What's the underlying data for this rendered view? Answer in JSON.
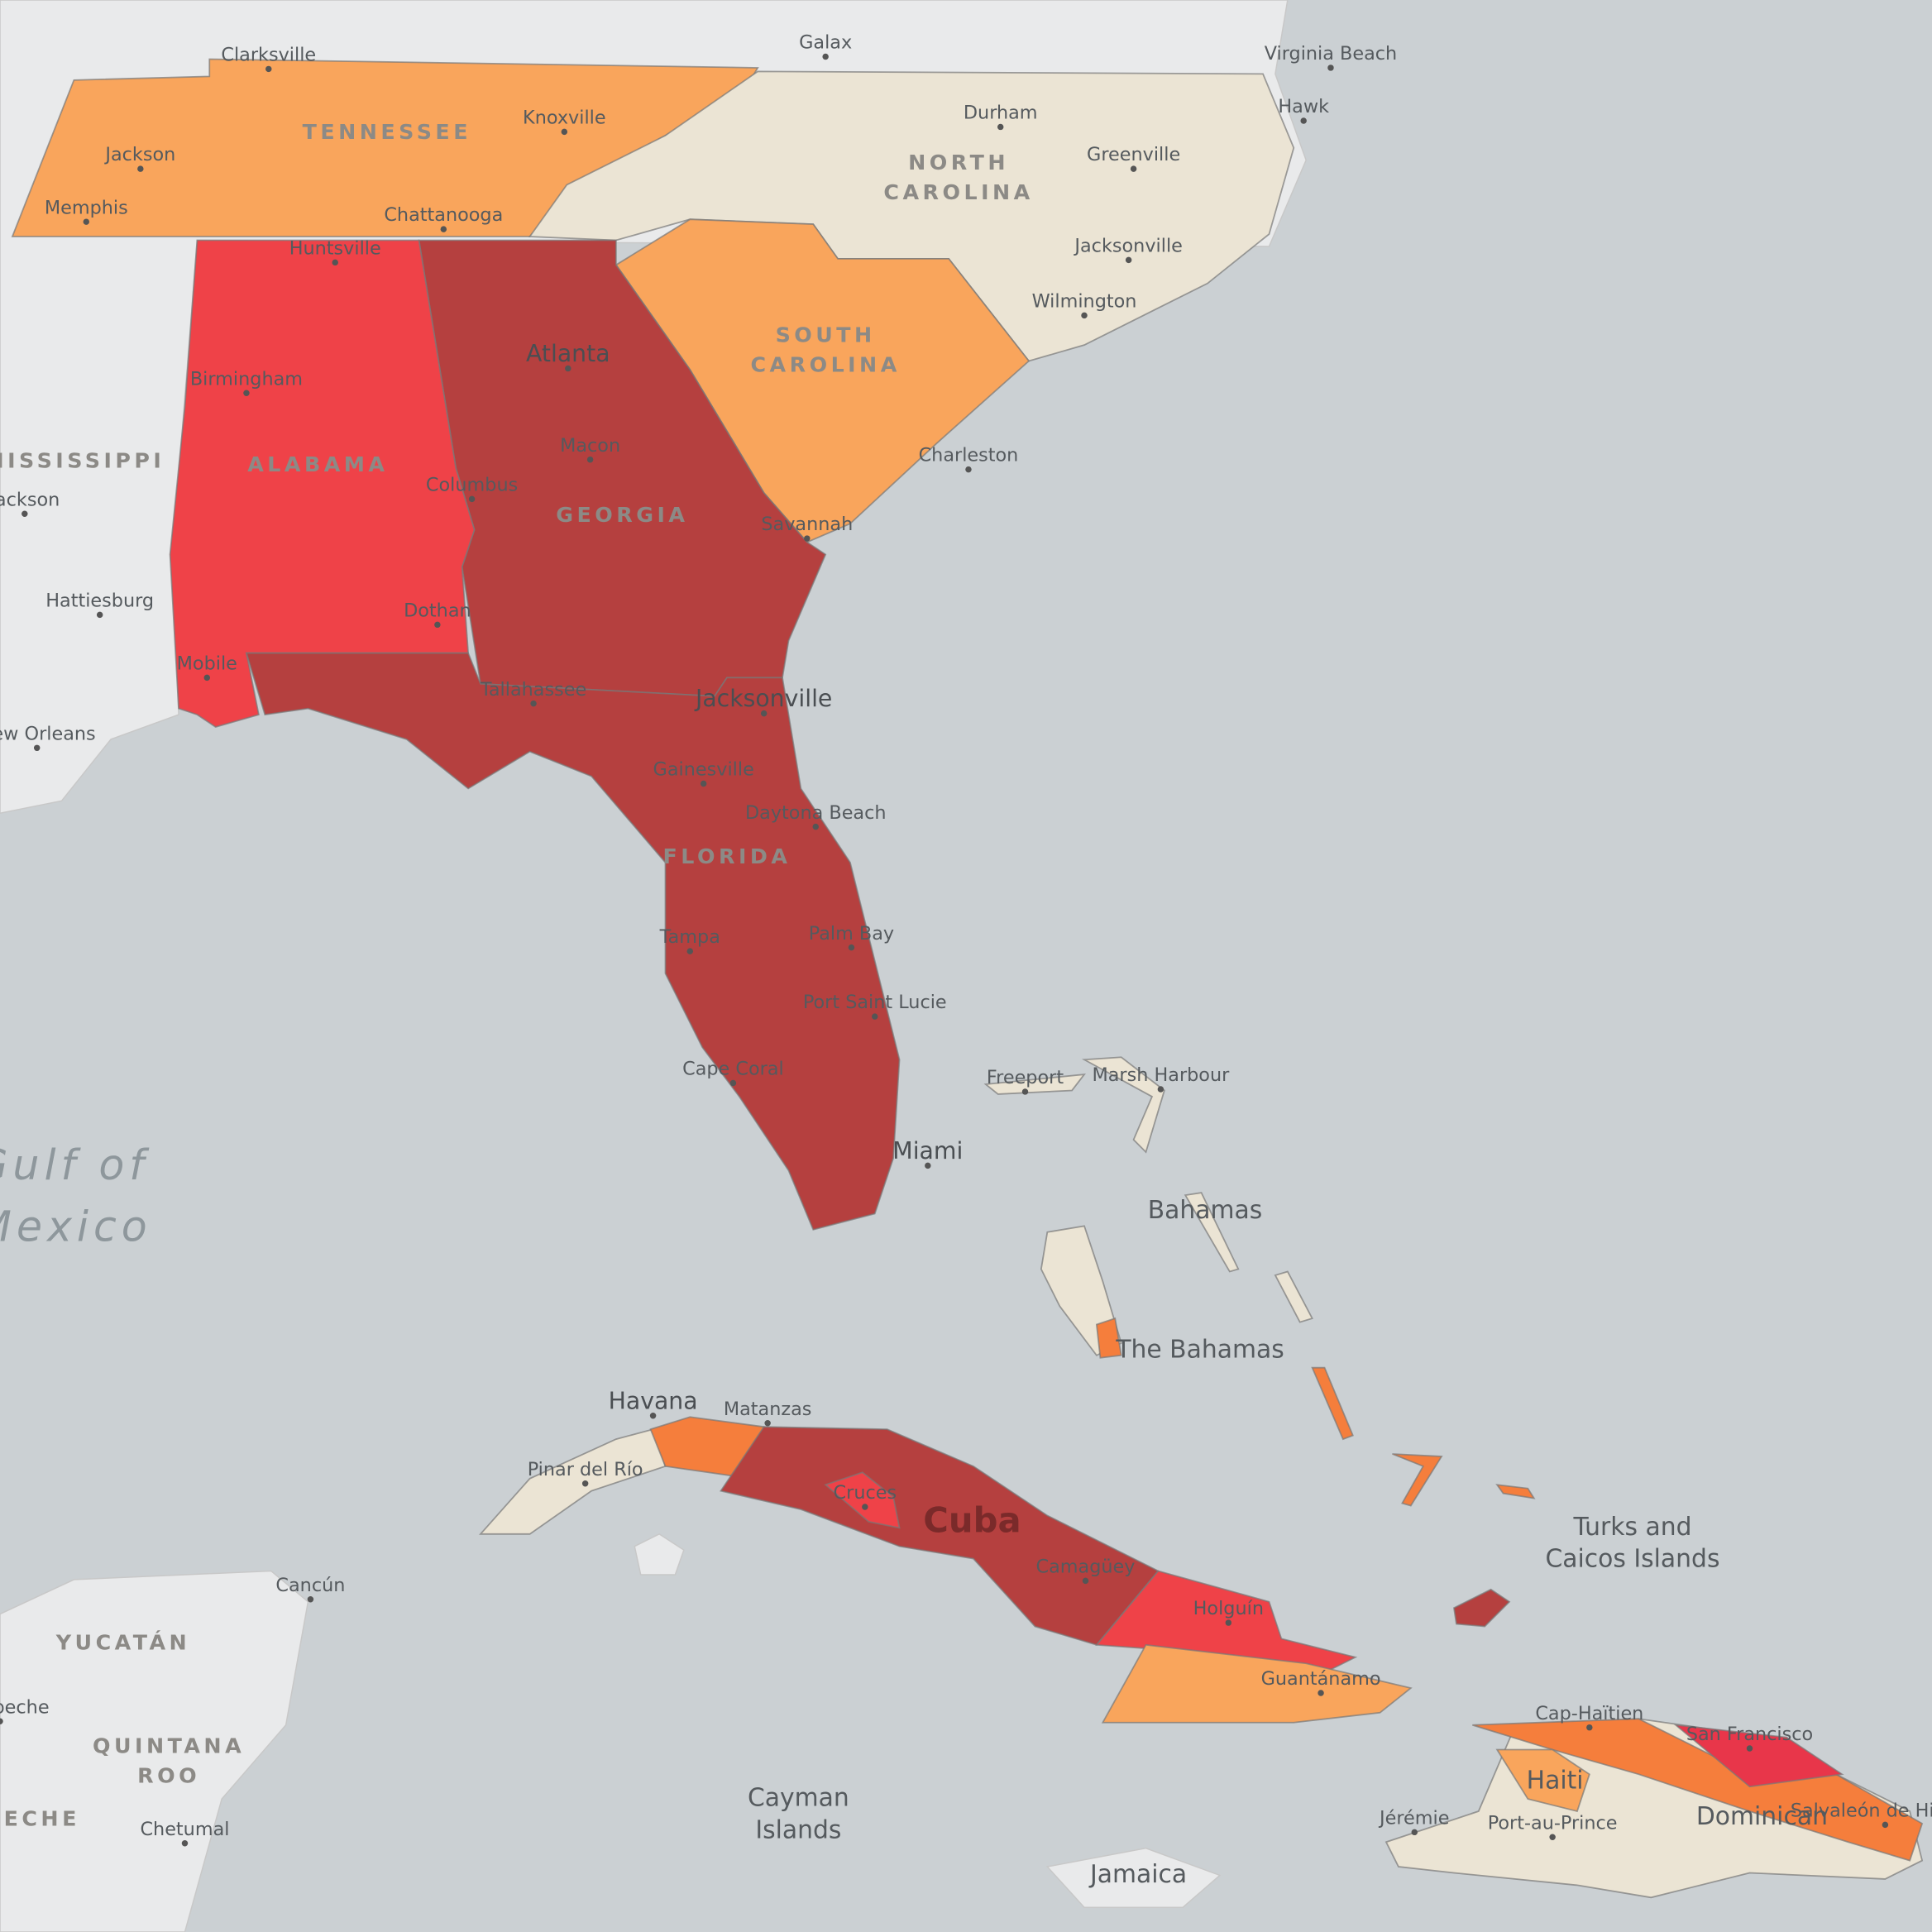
{
  "cities": [
    "Clarksville",
    "Galax",
    "Virginia Beach",
    "Hawk",
    "Knoxville",
    "Jackson",
    "Memphis",
    "Chattanooga",
    "Durham",
    "Greenville",
    "Jacksonville",
    "Wilmington",
    "Huntsville",
    "Atlanta",
    "Birmingham",
    "Macon",
    "Charleston",
    "Jackson",
    "Hattiesburg",
    "Columbus",
    "Savannah",
    "Dothan",
    "Mobile",
    "Tallahassee",
    "Jacksonville",
    "New Orleans",
    "Gainesville",
    "Daytona Beach",
    "Tampa",
    "Palm Bay",
    "Port Saint Lucie",
    "Cape Coral",
    "Freeport",
    "Marsh Harbour",
    "Miami",
    "Havana",
    "Matanzas",
    "Pinar del Río",
    "Cruces",
    "Camagüey",
    "Holguín",
    "Guantánamo",
    "Cancún",
    "Cap-Haïtien",
    "San Francisco",
    "Jérémie",
    "Port-au-Prince",
    "Salvaleón de Higüey",
    "Chetumal",
    "Campeche"
  ],
  "regions": [
    [
      "TENNESSEE"
    ],
    [
      "NORTH",
      "CAROLINA"
    ],
    [
      "SOUTH",
      "CAROLINA"
    ],
    [
      "MISSISSIPPI"
    ],
    [
      "ALABAMA"
    ],
    [
      "GEORGIA"
    ],
    [
      "FLORIDA"
    ],
    [
      "YUCATÁN"
    ],
    [
      "QUINTANA",
      "ROO"
    ],
    [
      "CAMPECHE"
    ]
  ],
  "countries": [
    [
      "Bahamas"
    ],
    [
      "The Bahamas"
    ],
    [
      "Cuba"
    ],
    [
      "Turks and",
      "Caicos Islands"
    ],
    [
      "Cayman",
      "Islands"
    ],
    [
      "Jamaica"
    ],
    [
      "Haiti"
    ],
    [
      "Dominican"
    ]
  ],
  "water": [
    [
      "Gulf of",
      "Mexico"
    ]
  ]
}
